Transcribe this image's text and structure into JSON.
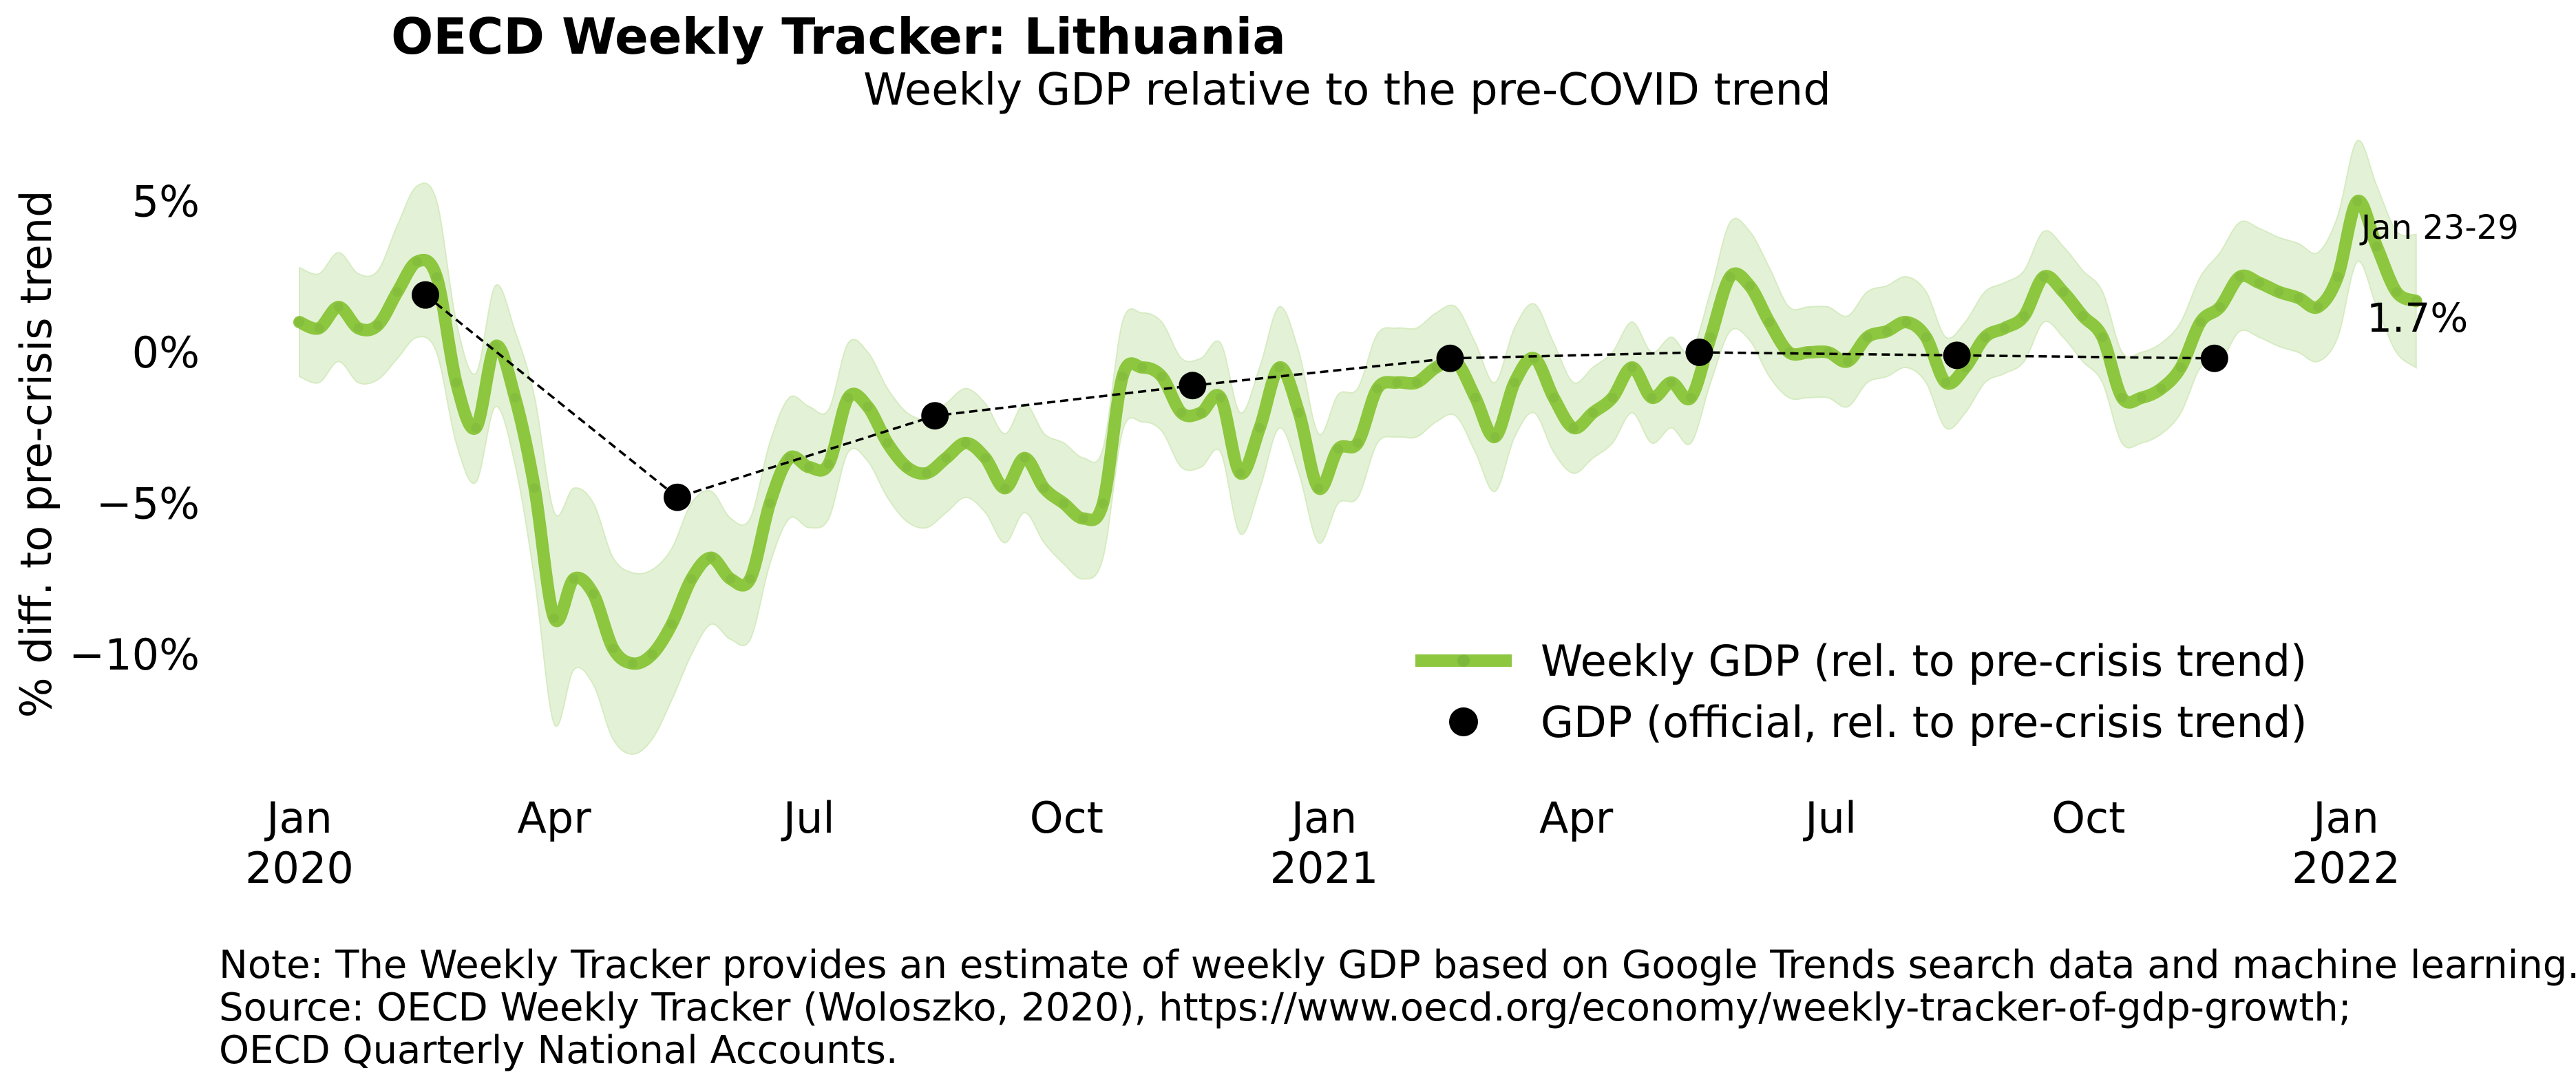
{
  "title": "OECD Weekly Tracker: Lithuania",
  "subtitle": "Weekly GDP relative to the pre-COVID trend",
  "colors": {
    "weekly_line": "#8DC63F",
    "band": "#E3F2D6",
    "official": "#000000"
  },
  "chart_data": {
    "type": "line",
    "title": "OECD Weekly Tracker: Lithuania",
    "subtitle": "Weekly GDP relative to the pre-COVID trend",
    "ylabel": "% diff. to pre-crisis trend",
    "ylim": [
      -13.5,
      7
    ],
    "xlim": [
      "2020-01-01",
      "2022-02-05"
    ],
    "grid": false,
    "legend_position": "lower-right",
    "yticks": [
      {
        "value": 5,
        "label": "5%"
      },
      {
        "value": 0,
        "label": "0%"
      },
      {
        "value": -5,
        "label": "−5%"
      },
      {
        "value": -10,
        "label": "−10%"
      }
    ],
    "xticks": [
      {
        "date": "2020-01-01",
        "label": "Jan",
        "year": "2020"
      },
      {
        "date": "2020-04-01",
        "label": "Apr",
        "year": ""
      },
      {
        "date": "2020-07-01",
        "label": "Jul",
        "year": ""
      },
      {
        "date": "2020-10-01",
        "label": "Oct",
        "year": ""
      },
      {
        "date": "2021-01-01",
        "label": "Jan",
        "year": "2021"
      },
      {
        "date": "2021-04-01",
        "label": "Apr",
        "year": ""
      },
      {
        "date": "2021-07-01",
        "label": "Jul",
        "year": ""
      },
      {
        "date": "2021-10-01",
        "label": "Oct",
        "year": ""
      },
      {
        "date": "2022-01-01",
        "label": "Jan",
        "year": "2022"
      }
    ],
    "series": [
      {
        "name": "Weekly GDP (rel. to pre-crisis trend)",
        "kind": "line_with_band",
        "points": [
          [
            "2020-01-01",
            1.0
          ],
          [
            "2020-01-08",
            0.8
          ],
          [
            "2020-01-15",
            1.5
          ],
          [
            "2020-01-22",
            0.8
          ],
          [
            "2020-01-29",
            0.9
          ],
          [
            "2020-02-05",
            2.0
          ],
          [
            "2020-02-12",
            3.0
          ],
          [
            "2020-02-19",
            2.5
          ],
          [
            "2020-02-26",
            -1.0
          ],
          [
            "2020-03-04",
            -2.5
          ],
          [
            "2020-03-11",
            0.2
          ],
          [
            "2020-03-18",
            -1.5
          ],
          [
            "2020-03-25",
            -4.5
          ],
          [
            "2020-04-01",
            -8.8
          ],
          [
            "2020-04-08",
            -7.5
          ],
          [
            "2020-04-15",
            -8.0
          ],
          [
            "2020-04-22",
            -9.8
          ],
          [
            "2020-04-29",
            -10.3
          ],
          [
            "2020-05-06",
            -10.0
          ],
          [
            "2020-05-13",
            -9.0
          ],
          [
            "2020-05-20",
            -7.5
          ],
          [
            "2020-05-27",
            -6.8
          ],
          [
            "2020-06-03",
            -7.5
          ],
          [
            "2020-06-10",
            -7.5
          ],
          [
            "2020-06-17",
            -5.0
          ],
          [
            "2020-06-24",
            -3.5
          ],
          [
            "2020-07-01",
            -3.8
          ],
          [
            "2020-07-08",
            -3.7
          ],
          [
            "2020-07-15",
            -1.5
          ],
          [
            "2020-07-22",
            -1.8
          ],
          [
            "2020-07-29",
            -3.0
          ],
          [
            "2020-08-05",
            -3.8
          ],
          [
            "2020-08-12",
            -4.0
          ],
          [
            "2020-08-19",
            -3.5
          ],
          [
            "2020-08-26",
            -3.0
          ],
          [
            "2020-09-02",
            -3.5
          ],
          [
            "2020-09-09",
            -4.5
          ],
          [
            "2020-09-16",
            -3.5
          ],
          [
            "2020-09-23",
            -4.5
          ],
          [
            "2020-09-30",
            -5.0
          ],
          [
            "2020-10-07",
            -5.5
          ],
          [
            "2020-10-14",
            -5.0
          ],
          [
            "2020-10-21",
            -0.8
          ],
          [
            "2020-10-28",
            -0.5
          ],
          [
            "2020-11-04",
            -0.8
          ],
          [
            "2020-11-11",
            -2.0
          ],
          [
            "2020-11-18",
            -2.0
          ],
          [
            "2020-11-25",
            -1.5
          ],
          [
            "2020-12-02",
            -4.0
          ],
          [
            "2020-12-09",
            -2.5
          ],
          [
            "2020-12-16",
            -0.5
          ],
          [
            "2020-12-23",
            -2.0
          ],
          [
            "2020-12-30",
            -4.5
          ],
          [
            "2021-01-06",
            -3.2
          ],
          [
            "2021-01-13",
            -3.0
          ],
          [
            "2021-01-20",
            -1.2
          ],
          [
            "2021-01-27",
            -1.0
          ],
          [
            "2021-02-03",
            -1.0
          ],
          [
            "2021-02-10",
            -0.5
          ],
          [
            "2021-02-17",
            -0.3
          ],
          [
            "2021-02-24",
            -1.5
          ],
          [
            "2021-03-03",
            -2.8
          ],
          [
            "2021-03-10",
            -1.0
          ],
          [
            "2021-03-17",
            -0.2
          ],
          [
            "2021-03-24",
            -1.5
          ],
          [
            "2021-03-31",
            -2.5
          ],
          [
            "2021-04-07",
            -2.0
          ],
          [
            "2021-04-14",
            -1.5
          ],
          [
            "2021-04-21",
            -0.5
          ],
          [
            "2021-04-28",
            -1.5
          ],
          [
            "2021-05-05",
            -1.0
          ],
          [
            "2021-05-12",
            -1.5
          ],
          [
            "2021-05-19",
            0.5
          ],
          [
            "2021-05-26",
            2.5
          ],
          [
            "2021-06-02",
            2.2
          ],
          [
            "2021-06-09",
            1.0
          ],
          [
            "2021-06-16",
            0.0
          ],
          [
            "2021-06-23",
            0.0
          ],
          [
            "2021-06-30",
            0.0
          ],
          [
            "2021-07-07",
            -0.3
          ],
          [
            "2021-07-14",
            0.5
          ],
          [
            "2021-07-21",
            0.7
          ],
          [
            "2021-07-28",
            1.0
          ],
          [
            "2021-08-04",
            0.5
          ],
          [
            "2021-08-11",
            -1.0
          ],
          [
            "2021-08-18",
            -0.5
          ],
          [
            "2021-08-25",
            0.5
          ],
          [
            "2021-09-01",
            0.8
          ],
          [
            "2021-09-08",
            1.2
          ],
          [
            "2021-09-15",
            2.5
          ],
          [
            "2021-09-22",
            2.0
          ],
          [
            "2021-09-29",
            1.2
          ],
          [
            "2021-10-06",
            0.5
          ],
          [
            "2021-10-13",
            -1.5
          ],
          [
            "2021-10-20",
            -1.5
          ],
          [
            "2021-10-27",
            -1.2
          ],
          [
            "2021-11-03",
            -0.5
          ],
          [
            "2021-11-10",
            1.0
          ],
          [
            "2021-11-17",
            1.5
          ],
          [
            "2021-11-24",
            2.5
          ],
          [
            "2021-12-01",
            2.3
          ],
          [
            "2021-12-08",
            2.0
          ],
          [
            "2021-12-15",
            1.8
          ],
          [
            "2021-12-22",
            1.5
          ],
          [
            "2021-12-29",
            2.5
          ],
          [
            "2022-01-05",
            5.0
          ],
          [
            "2022-01-12",
            3.5
          ],
          [
            "2022-01-19",
            2.0
          ],
          [
            "2022-01-26",
            1.7
          ]
        ],
        "band_halfwidth": [
          1.8,
          1.8,
          1.8,
          1.8,
          1.8,
          2.2,
          2.5,
          2.5,
          2.0,
          1.8,
          2.0,
          2.2,
          3.0,
          3.5,
          3.0,
          3.0,
          3.0,
          3.0,
          2.8,
          2.5,
          2.5,
          2.2,
          2.0,
          2.0,
          2.0,
          2.0,
          2.0,
          1.8,
          1.8,
          1.8,
          1.8,
          1.8,
          1.8,
          1.8,
          1.8,
          1.8,
          1.8,
          1.8,
          1.8,
          2.0,
          2.0,
          1.8,
          1.8,
          1.8,
          1.8,
          1.8,
          1.8,
          1.8,
          2.0,
          2.0,
          2.0,
          2.0,
          1.8,
          1.8,
          1.8,
          1.8,
          1.8,
          1.8,
          1.8,
          1.8,
          1.8,
          1.8,
          1.8,
          1.8,
          1.8,
          1.5,
          1.5,
          1.5,
          1.5,
          1.5,
          1.5,
          1.5,
          1.5,
          1.8,
          1.8,
          1.8,
          1.5,
          1.5,
          1.5,
          1.5,
          1.5,
          1.5,
          1.5,
          1.5,
          1.5,
          1.5,
          1.5,
          1.5,
          1.5,
          1.5,
          1.5,
          1.5,
          1.5,
          1.5,
          1.5,
          1.5,
          1.5,
          1.5,
          1.8,
          1.8,
          1.8,
          1.8,
          1.8,
          1.8,
          2.0,
          2.0,
          2.0,
          2.0,
          2.2
        ]
      },
      {
        "name": "GDP (official, rel. to pre-crisis trend)",
        "kind": "points_dashed",
        "points": [
          [
            "2020-02-15",
            1.9
          ],
          [
            "2020-05-15",
            -4.8
          ],
          [
            "2020-08-15",
            -2.1
          ],
          [
            "2020-11-15",
            -1.1
          ],
          [
            "2021-02-15",
            -0.2
          ],
          [
            "2021-05-15",
            0.0
          ],
          [
            "2021-08-15",
            -0.1
          ],
          [
            "2021-11-15",
            -0.2
          ]
        ]
      }
    ],
    "annotation": {
      "date_label": "Jan 23-29",
      "value_label": "1.7%"
    }
  },
  "notes": [
    "Note: The Weekly Tracker provides an estimate of weekly GDP based on Google Trends search data and machine learning.",
    "Source: OECD Weekly Tracker (Woloszko, 2020), https://www.oecd.org/economy/weekly-tracker-of-gdp-growth;",
    "OECD Quarterly National Accounts."
  ]
}
